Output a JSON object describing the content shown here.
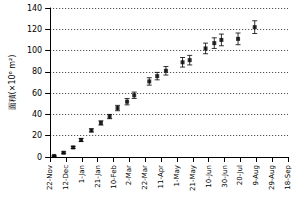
{
  "chart_data": {
    "type": "scatter",
    "y_label": "面積(×10⁶ m²)",
    "x": [
      5,
      17,
      29,
      39,
      52,
      64,
      75,
      85,
      97,
      106,
      125,
      135,
      146,
      167,
      176,
      196,
      207,
      216,
      237,
      258
    ],
    "values": [
      1,
      4,
      9,
      16,
      25,
      32,
      38,
      46,
      52,
      58,
      71,
      76,
      81,
      89,
      91,
      102,
      107,
      110,
      111,
      122
    ],
    "errors": [
      0.5,
      0.8,
      1,
      1.5,
      1.5,
      2,
      2,
      2.5,
      3,
      3,
      3.5,
      3.5,
      4,
      4.5,
      4.5,
      5,
      5,
      5.5,
      5.5,
      6
    ],
    "color": "#000000",
    "marker": "square",
    "xlim": [
      0,
      300
    ],
    "xticks": [
      {
        "value": 0,
        "label": "22-Nov"
      },
      {
        "value": 20,
        "label": "12-Dec"
      },
      {
        "value": 40,
        "label": "1-Jan"
      },
      {
        "value": 60,
        "label": "21-Jan"
      },
      {
        "value": 80,
        "label": "10-Feb"
      },
      {
        "value": 100,
        "label": "2-Mar"
      },
      {
        "value": 120,
        "label": "22-Mar"
      },
      {
        "value": 140,
        "label": "11-Apr"
      },
      {
        "value": 160,
        "label": "1-May"
      },
      {
        "value": 180,
        "label": "21-May"
      },
      {
        "value": 200,
        "label": "10-Jun"
      },
      {
        "value": 220,
        "label": "30-Jun"
      },
      {
        "value": 240,
        "label": "20-Jul"
      },
      {
        "value": 260,
        "label": "9-Aug"
      },
      {
        "value": 280,
        "label": "29-Aug"
      },
      {
        "value": 300,
        "label": "18-Sep"
      }
    ],
    "ylim": [
      0,
      140
    ],
    "yticks": [
      0,
      20,
      40,
      60,
      80,
      100,
      120,
      140
    ],
    "grid": true
  }
}
